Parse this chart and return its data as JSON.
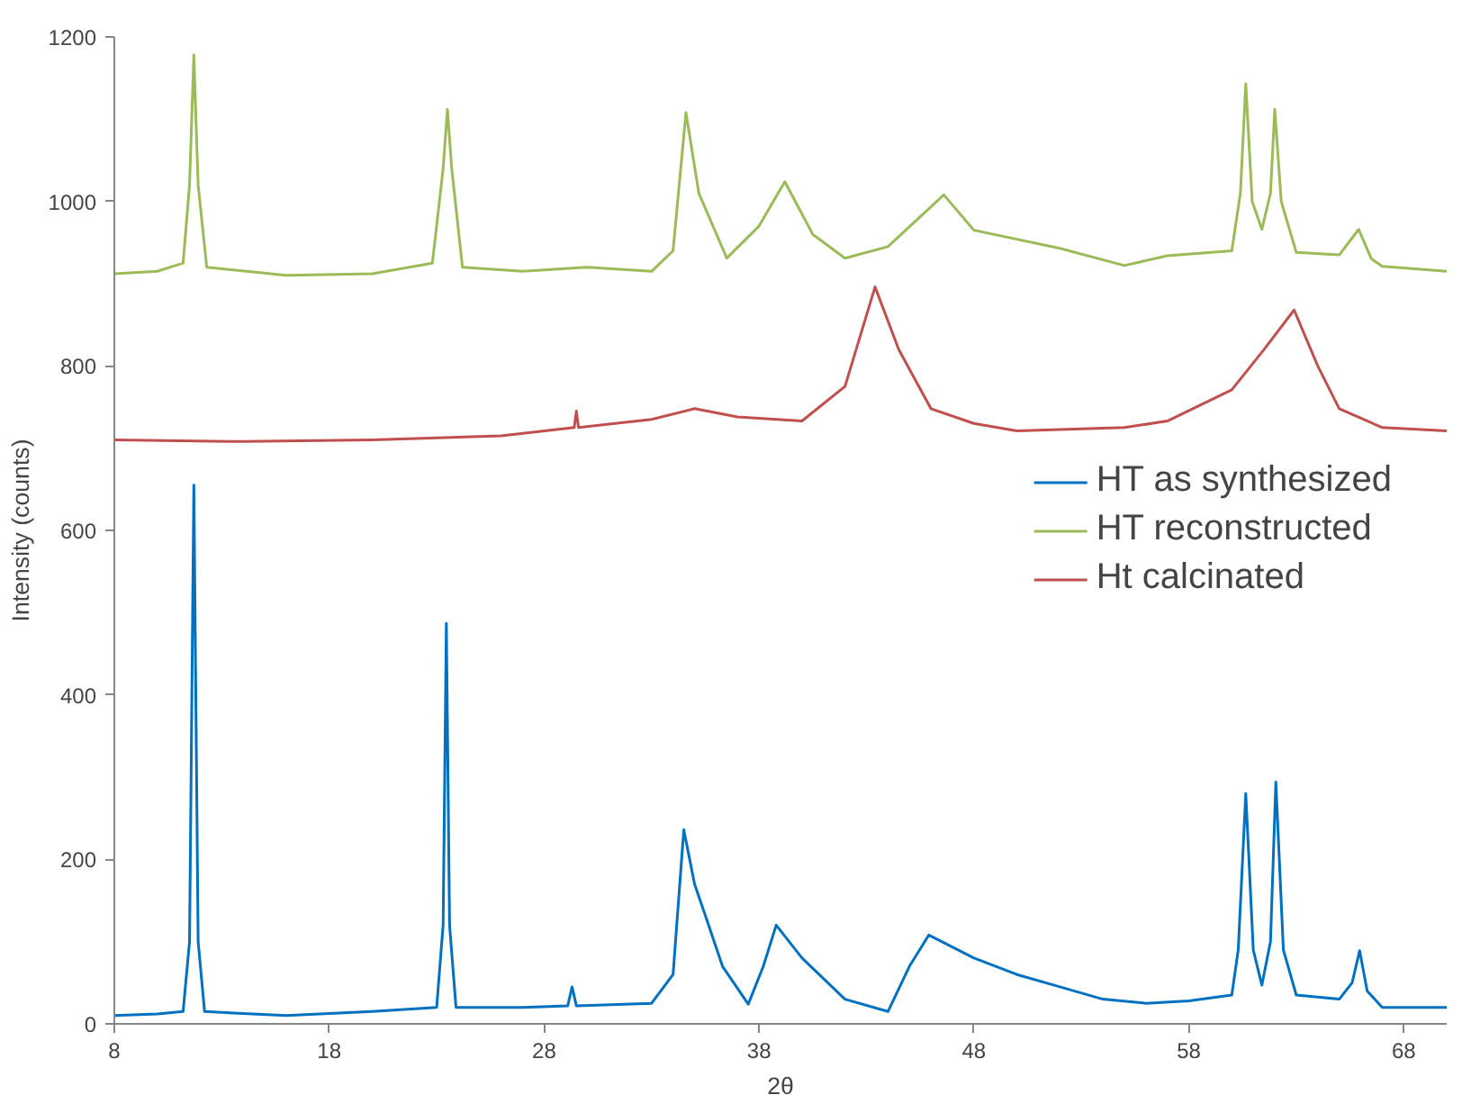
{
  "chart_data": {
    "type": "line",
    "xlabel": "2θ",
    "ylabel": "Intensity (counts)",
    "xlim": [
      8,
      70
    ],
    "xticks": [
      8,
      18,
      28,
      38,
      48,
      58,
      68
    ],
    "ylim": [
      0,
      1200
    ],
    "yticks": [
      0,
      200,
      400,
      600,
      800,
      1000,
      1200
    ],
    "grid": false,
    "legend": "right",
    "marker": "none",
    "line_style": "solid",
    "series": [
      {
        "name": "HT as synthesized",
        "color": "#0070c0",
        "x": [
          8,
          10,
          11.2,
          11.5,
          11.7,
          11.9,
          12.2,
          16,
          20,
          23.0,
          23.3,
          23.45,
          23.6,
          23.9,
          27,
          29.1,
          29.3,
          29.5,
          33,
          34.0,
          34.5,
          35.0,
          35.5,
          36.3,
          37.5,
          38.2,
          38.8,
          40,
          42,
          44,
          45,
          45.9,
          48,
          50,
          52,
          54,
          56,
          58,
          60,
          60.3,
          60.65,
          61.0,
          61.4,
          61.8,
          62.05,
          62.4,
          63,
          65,
          65.6,
          65.95,
          66.3,
          67,
          70
        ],
        "values": [
          10,
          12,
          15,
          100,
          655,
          100,
          15,
          10,
          15,
          20,
          120,
          487,
          120,
          20,
          20,
          22,
          45,
          22,
          25,
          60,
          236,
          170,
          132,
          70,
          24,
          70,
          120,
          80,
          30,
          15,
          70,
          108,
          80,
          60,
          45,
          30,
          25,
          28,
          35,
          90,
          280,
          90,
          47,
          100,
          294,
          90,
          35,
          30,
          50,
          89,
          40,
          20,
          20
        ]
      },
      {
        "name": "HT reconstructed",
        "color": "#9bbb59",
        "x": [
          8,
          10,
          11.2,
          11.5,
          11.7,
          11.9,
          12.3,
          16,
          20,
          22.8,
          23.3,
          23.5,
          23.7,
          24.2,
          27,
          30,
          33,
          34.0,
          34.6,
          35.2,
          36.5,
          38,
          39.2,
          40.5,
          42,
          44,
          46.6,
          48,
          52,
          55,
          57,
          60,
          60.4,
          60.65,
          60.95,
          61.4,
          61.8,
          62.0,
          62.3,
          63,
          65,
          65.9,
          66.5,
          67,
          70
        ],
        "values": [
          912,
          915,
          925,
          1020,
          1178,
          1020,
          920,
          910,
          912,
          925,
          1040,
          1112,
          1040,
          920,
          915,
          920,
          915,
          940,
          1108,
          1010,
          931,
          970,
          1024,
          960,
          931,
          945,
          1008,
          965,
          943,
          922,
          934,
          940,
          1010,
          1143,
          1000,
          966,
          1010,
          1112,
          1000,
          938,
          935,
          966,
          930,
          921,
          915
        ]
      },
      {
        "name": "Ht calcinated",
        "color": "#c0504d",
        "x": [
          8,
          14,
          20,
          26,
          29.4,
          29.5,
          29.6,
          33,
          35,
          37,
          40,
          42,
          43.4,
          44.5,
          46,
          48,
          50,
          55,
          57,
          60,
          61.5,
          62.9,
          64,
          65,
          67,
          70
        ],
        "values": [
          710,
          708,
          710,
          715,
          725,
          745,
          725,
          735,
          748,
          738,
          733,
          775,
          896,
          820,
          748,
          730,
          721,
          725,
          733,
          771,
          820,
          868,
          800,
          748,
          725,
          721
        ]
      }
    ]
  }
}
